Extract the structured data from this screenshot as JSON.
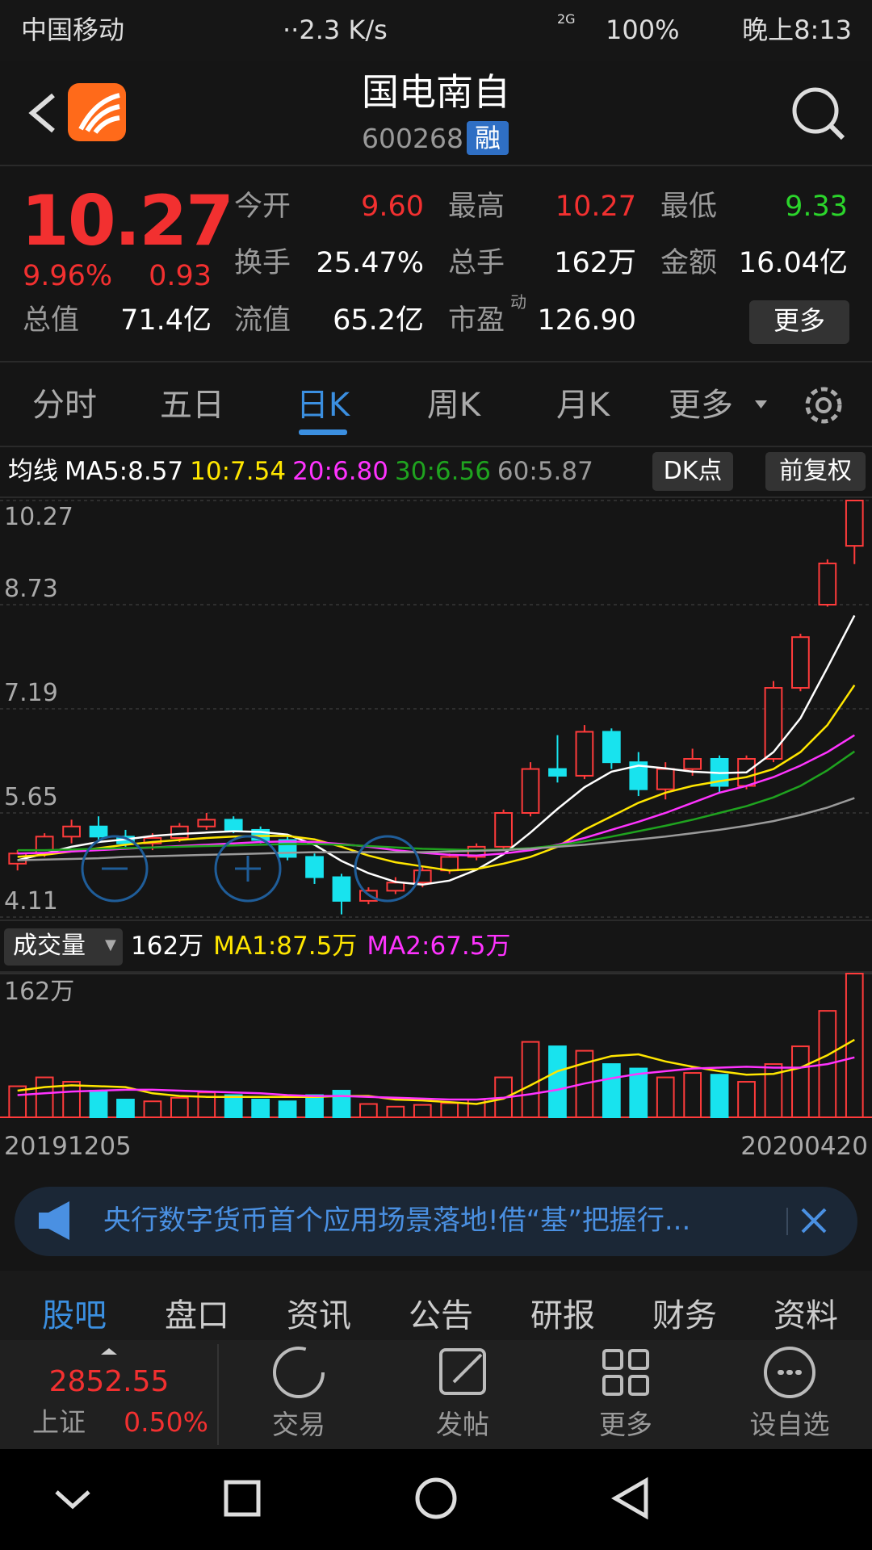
{
  "status_bar": {
    "carrier": "中国移动",
    "speed": "··2.3 K/s",
    "network": "2G",
    "battery": "100%",
    "time": "晚上8:13"
  },
  "header": {
    "title": "国电南自",
    "code": "600268",
    "badge": "融"
  },
  "quote": {
    "price": "10.27",
    "change_pct": "9.96%",
    "change": "0.93",
    "fields": [
      {
        "label": "今开",
        "value": "9.60"
      },
      {
        "label": "最高",
        "value": "10.27"
      },
      {
        "label": "最低",
        "value": "9.33"
      },
      {
        "label": "换手",
        "value": "25.47%"
      },
      {
        "label": "总手",
        "value": "162万"
      },
      {
        "label": "金额",
        "value": "16.04亿"
      },
      {
        "label": "总值",
        "value": "71.4亿"
      },
      {
        "label": "流值",
        "value": "65.2亿"
      },
      {
        "label": "市盈",
        "sup": "动",
        "value": "126.90"
      }
    ],
    "button": "更多"
  },
  "tabs": {
    "items": [
      "分时",
      "五日",
      "日K",
      "周K",
      "月K",
      "更多"
    ],
    "active": 2
  },
  "ma_legend": {
    "label": "均线",
    "items": [
      "MA5:8.57",
      "10:7.54",
      "20:6.80",
      "30:6.56",
      "60:5.87"
    ],
    "buttons": [
      "DK点",
      "前复权"
    ]
  },
  "volume_legend": {
    "label": "成交量",
    "current": "162万",
    "items": [
      "MA1:87.5万",
      "MA2:67.5万"
    ]
  },
  "chart_data": [
    {
      "type": "candlestick",
      "categories": [
        "20191205",
        null,
        null,
        null,
        null,
        null,
        null,
        null,
        null,
        null,
        null,
        null,
        null,
        null,
        null,
        null,
        null,
        null,
        null,
        null,
        null,
        null,
        null,
        null,
        null,
        null,
        null,
        null,
        null,
        null,
        null,
        "20200420"
      ],
      "open": [
        4.9,
        5.05,
        5.3,
        5.45,
        5.3,
        5.2,
        5.28,
        5.45,
        5.55,
        5.4,
        5.25,
        5.0,
        4.7,
        4.35,
        4.5,
        4.62,
        4.8,
        5.0,
        5.15,
        5.65,
        6.3,
        6.2,
        6.85,
        6.4,
        6.0,
        6.3,
        6.45,
        6.05,
        6.45,
        7.5,
        8.73,
        9.6
      ],
      "high": [
        5.1,
        5.35,
        5.55,
        5.6,
        5.4,
        5.35,
        5.5,
        5.65,
        5.6,
        5.45,
        5.3,
        5.05,
        4.75,
        4.55,
        4.7,
        4.85,
        5.05,
        5.2,
        5.7,
        6.4,
        6.8,
        6.95,
        6.9,
        6.55,
        6.4,
        6.6,
        6.5,
        6.5,
        7.6,
        8.3,
        9.4,
        10.27
      ],
      "low": [
        4.8,
        5.0,
        5.2,
        5.25,
        5.15,
        5.1,
        5.22,
        5.4,
        5.35,
        5.2,
        4.95,
        4.6,
        4.15,
        4.3,
        4.45,
        4.55,
        4.75,
        4.95,
        5.1,
        5.6,
        6.1,
        6.15,
        6.3,
        5.9,
        5.85,
        6.2,
        5.95,
        6.0,
        6.4,
        7.45,
        8.7,
        9.33
      ],
      "close": [
        5.05,
        5.3,
        5.45,
        5.3,
        5.2,
        5.28,
        5.45,
        5.55,
        5.4,
        5.25,
        5.0,
        4.7,
        4.35,
        4.5,
        4.62,
        4.8,
        5.0,
        5.15,
        5.65,
        6.3,
        6.2,
        6.85,
        6.4,
        6.0,
        6.3,
        6.45,
        6.05,
        6.45,
        7.5,
        8.25,
        9.34,
        10.27
      ],
      "up_color": "#ff3b3b",
      "down_color": "#18e3ee",
      "ylim": [
        4.11,
        10.27
      ],
      "yticks": [
        4.11,
        5.65,
        7.19,
        8.73,
        10.27
      ],
      "grid": true,
      "series": [
        {
          "color": "#ffffff",
          "values": [
            4.95,
            5.05,
            5.15,
            5.22,
            5.26,
            5.31,
            5.34,
            5.36,
            5.38,
            5.37,
            5.33,
            5.18,
            4.94,
            4.76,
            4.63,
            4.59,
            4.65,
            4.81,
            5.04,
            5.36,
            5.71,
            6.03,
            6.26,
            6.35,
            6.31,
            6.26,
            6.24,
            6.25,
            6.55,
            7.05,
            7.8,
            8.57
          ]
        },
        {
          "color": "#ffe600",
          "values": [
            5.0,
            5.03,
            5.08,
            5.13,
            5.18,
            5.22,
            5.25,
            5.28,
            5.3,
            5.31,
            5.31,
            5.26,
            5.15,
            5.02,
            4.92,
            4.86,
            4.8,
            4.82,
            4.9,
            5.0,
            5.15,
            5.4,
            5.6,
            5.8,
            5.95,
            6.05,
            6.12,
            6.18,
            6.3,
            6.55,
            6.95,
            7.54
          ]
        },
        {
          "color": "#ff33ff",
          "values": [
            5.05,
            5.06,
            5.08,
            5.1,
            5.12,
            5.14,
            5.16,
            5.18,
            5.2,
            5.22,
            5.23,
            5.22,
            5.19,
            5.15,
            5.1,
            5.06,
            5.03,
            5.02,
            5.05,
            5.1,
            5.18,
            5.28,
            5.4,
            5.52,
            5.65,
            5.8,
            5.95,
            6.05,
            6.18,
            6.35,
            6.55,
            6.8
          ]
        },
        {
          "color": "#1fa31f",
          "values": [
            5.1,
            5.1,
            5.11,
            5.12,
            5.13,
            5.14,
            5.15,
            5.16,
            5.17,
            5.18,
            5.19,
            5.19,
            5.18,
            5.16,
            5.14,
            5.12,
            5.11,
            5.1,
            5.11,
            5.13,
            5.17,
            5.23,
            5.3,
            5.38,
            5.46,
            5.55,
            5.65,
            5.75,
            5.88,
            6.05,
            6.28,
            6.56
          ]
        },
        {
          "color": "#9a9a9a",
          "values": [
            4.95,
            4.96,
            4.97,
            4.98,
            5.0,
            5.01,
            5.02,
            5.03,
            5.04,
            5.05,
            5.06,
            5.07,
            5.07,
            5.07,
            5.07,
            5.07,
            5.08,
            5.09,
            5.1,
            5.12,
            5.15,
            5.18,
            5.22,
            5.26,
            5.3,
            5.35,
            5.4,
            5.46,
            5.53,
            5.62,
            5.73,
            5.87
          ]
        }
      ]
    },
    {
      "type": "bar",
      "values": [
        35,
        45,
        40,
        30,
        20,
        18,
        22,
        28,
        25,
        20,
        18,
        25,
        30,
        15,
        12,
        14,
        16,
        20,
        45,
        85,
        80,
        75,
        60,
        55,
        45,
        50,
        48,
        40,
        60,
        80,
        120,
        162
      ],
      "ylim": [
        0,
        162
      ],
      "yticks": [
        {
          "value": 162,
          "label": "162万"
        }
      ],
      "series": [
        {
          "color": "#ffe600",
          "values": [
            30,
            34,
            36,
            35,
            34,
            27,
            24,
            23,
            23,
            23,
            23,
            23,
            24,
            24,
            20,
            19,
            17,
            15,
            21,
            36,
            52,
            61,
            69,
            71,
            63,
            57,
            52,
            48,
            49,
            56,
            70,
            87.5
          ]
        },
        {
          "color": "#ff33ff",
          "values": [
            25,
            27,
            29,
            30,
            31,
            31,
            30,
            29,
            28,
            27,
            25,
            24,
            24,
            23,
            22,
            21,
            20,
            20,
            22,
            26,
            31,
            38,
            44,
            49,
            52,
            55,
            56,
            57,
            56,
            56,
            60,
            67.5
          ]
        }
      ]
    }
  ],
  "news": {
    "text": "央行数字货币首个应用场景落地!借“基”把握行..."
  },
  "bottom_tabs": {
    "items": [
      "股吧",
      "盘口",
      "资讯",
      "公告",
      "研报",
      "财务",
      "资料"
    ],
    "active": 0
  },
  "footer": {
    "index_value": "2852.55",
    "index_name": "上证",
    "index_change": "0.50%",
    "actions": [
      "交易",
      "发帖",
      "更多",
      "设自选"
    ]
  }
}
